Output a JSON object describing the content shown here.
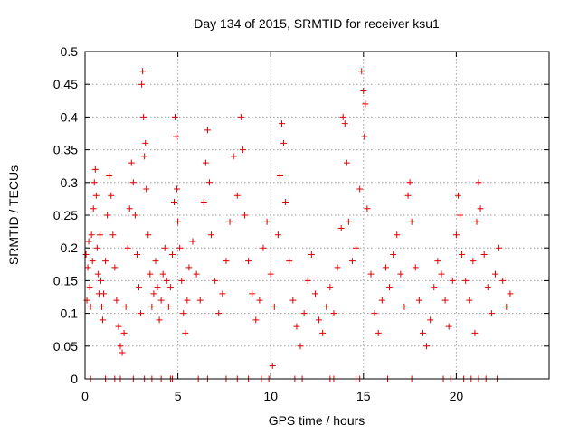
{
  "chart_data": {
    "type": "scatter",
    "title": "Day 134 of 2015, SRMTID for receiver ksu1",
    "xlabel": "GPS time / hours",
    "ylabel": "SRMTID / TECUs",
    "xlim": [
      0,
      25
    ],
    "ylim": [
      0,
      0.5
    ],
    "x_ticks": [
      0,
      5,
      10,
      15,
      20
    ],
    "x_tick_labels": [
      "0",
      "5",
      "10",
      "15",
      "20"
    ],
    "y_ticks": [
      0,
      0.05,
      0.1,
      0.15,
      0.2,
      0.25,
      0.3,
      0.35,
      0.4,
      0.45,
      0.5
    ],
    "y_tick_labels": [
      "0",
      "0.05",
      "0.1",
      "0.15",
      "0.2",
      "0.25",
      "0.3",
      "0.35",
      "0.4",
      "0.45",
      "0.5"
    ],
    "grid": true,
    "marker": "plus",
    "color": "#e00000",
    "series": [
      {
        "name": "SRMTID",
        "points": [
          [
            0.05,
            0.19
          ],
          [
            0.1,
            0.12
          ],
          [
            0.15,
            0.17
          ],
          [
            0.2,
            0.21
          ],
          [
            0.25,
            0.14
          ],
          [
            0.3,
            0.11
          ],
          [
            0.35,
            0.22
          ],
          [
            0.4,
            0.18
          ],
          [
            0.45,
            0.26
          ],
          [
            0.5,
            0.3
          ],
          [
            0.55,
            0.32
          ],
          [
            0.6,
            0.28
          ],
          [
            0.65,
            0.2
          ],
          [
            0.7,
            0.16
          ],
          [
            0.75,
            0.13
          ],
          [
            0.8,
            0.22
          ],
          [
            0.85,
            0.15
          ],
          [
            0.9,
            0.11
          ],
          [
            0.95,
            0.09
          ],
          [
            1.0,
            0.13
          ],
          [
            1.1,
            0.18
          ],
          [
            1.2,
            0.25
          ],
          [
            1.3,
            0.31
          ],
          [
            1.4,
            0.28
          ],
          [
            1.5,
            0.22
          ],
          [
            1.6,
            0.17
          ],
          [
            1.7,
            0.12
          ],
          [
            1.8,
            0.08
          ],
          [
            1.9,
            0.05
          ],
          [
            2.0,
            0.04
          ],
          [
            2.1,
            0.07
          ],
          [
            2.2,
            0.11
          ],
          [
            2.3,
            0.2
          ],
          [
            2.4,
            0.26
          ],
          [
            2.5,
            0.33
          ],
          [
            2.6,
            0.3
          ],
          [
            2.7,
            0.25
          ],
          [
            2.8,
            0.19
          ],
          [
            2.9,
            0.14
          ],
          [
            3.0,
            0.1
          ],
          [
            3.05,
            0.45
          ],
          [
            3.1,
            0.47
          ],
          [
            3.15,
            0.4
          ],
          [
            3.2,
            0.34
          ],
          [
            3.25,
            0.36
          ],
          [
            3.3,
            0.29
          ],
          [
            3.4,
            0.22
          ],
          [
            3.5,
            0.16
          ],
          [
            3.6,
            0.11
          ],
          [
            3.7,
            0.13
          ],
          [
            3.8,
            0.18
          ],
          [
            3.9,
            0.14
          ],
          [
            4.0,
            0.09
          ],
          [
            4.1,
            0.12
          ],
          [
            4.2,
            0.16
          ],
          [
            4.3,
            0.2
          ],
          [
            4.4,
            0.15
          ],
          [
            4.5,
            0.11
          ],
          [
            4.6,
            0.14
          ],
          [
            4.7,
            0.19
          ],
          [
            4.8,
            0.27
          ],
          [
            4.85,
            0.4
          ],
          [
            4.9,
            0.37
          ],
          [
            4.95,
            0.29
          ],
          [
            5.0,
            0.24
          ],
          [
            5.1,
            0.2
          ],
          [
            5.2,
            0.15
          ],
          [
            5.3,
            0.1
          ],
          [
            5.4,
            0.07
          ],
          [
            5.5,
            0.12
          ],
          [
            5.6,
            0.17
          ],
          [
            5.8,
            0.21
          ],
          [
            6.0,
            0.16
          ],
          [
            6.2,
            0.12
          ],
          [
            6.4,
            0.27
          ],
          [
            6.5,
            0.33
          ],
          [
            6.6,
            0.38
          ],
          [
            6.7,
            0.3
          ],
          [
            6.8,
            0.22
          ],
          [
            7.0,
            0.15
          ],
          [
            7.2,
            0.1
          ],
          [
            7.4,
            0.13
          ],
          [
            7.6,
            0.18
          ],
          [
            7.8,
            0.24
          ],
          [
            8.0,
            0.34
          ],
          [
            8.2,
            0.28
          ],
          [
            8.4,
            0.4
          ],
          [
            8.5,
            0.35
          ],
          [
            8.6,
            0.25
          ],
          [
            8.8,
            0.18
          ],
          [
            9.0,
            0.13
          ],
          [
            9.2,
            0.09
          ],
          [
            9.4,
            0.12
          ],
          [
            9.6,
            0.2
          ],
          [
            9.8,
            0.24
          ],
          [
            10.0,
            0.16
          ],
          [
            10.1,
            0.02
          ],
          [
            10.2,
            0.11
          ],
          [
            10.4,
            0.22
          ],
          [
            10.5,
            0.31
          ],
          [
            10.6,
            0.39
          ],
          [
            10.7,
            0.36
          ],
          [
            10.8,
            0.27
          ],
          [
            11.0,
            0.18
          ],
          [
            11.2,
            0.12
          ],
          [
            11.4,
            0.08
          ],
          [
            11.6,
            0.05
          ],
          [
            11.8,
            0.1
          ],
          [
            12.0,
            0.15
          ],
          [
            12.2,
            0.19
          ],
          [
            12.4,
            0.13
          ],
          [
            12.6,
            0.09
          ],
          [
            12.8,
            0.07
          ],
          [
            13.0,
            0.11
          ],
          [
            13.2,
            0.14
          ],
          [
            13.4,
            0.1
          ],
          [
            13.6,
            0.17
          ],
          [
            13.8,
            0.23
          ],
          [
            13.9,
            0.4
          ],
          [
            14.0,
            0.39
          ],
          [
            14.1,
            0.33
          ],
          [
            14.2,
            0.24
          ],
          [
            14.4,
            0.18
          ],
          [
            14.6,
            0.2
          ],
          [
            14.8,
            0.29
          ],
          [
            14.9,
            0.47
          ],
          [
            15.0,
            0.44
          ],
          [
            15.05,
            0.37
          ],
          [
            15.1,
            0.42
          ],
          [
            15.2,
            0.26
          ],
          [
            15.4,
            0.16
          ],
          [
            15.6,
            0.1
          ],
          [
            15.8,
            0.07
          ],
          [
            16.0,
            0.12
          ],
          [
            16.2,
            0.17
          ],
          [
            16.4,
            0.14
          ],
          [
            16.6,
            0.19
          ],
          [
            16.8,
            0.22
          ],
          [
            17.0,
            0.16
          ],
          [
            17.2,
            0.11
          ],
          [
            17.4,
            0.28
          ],
          [
            17.5,
            0.3
          ],
          [
            17.6,
            0.24
          ],
          [
            17.8,
            0.17
          ],
          [
            18.0,
            0.12
          ],
          [
            18.2,
            0.07
          ],
          [
            18.4,
            0.05
          ],
          [
            18.6,
            0.09
          ],
          [
            18.8,
            0.14
          ],
          [
            19.0,
            0.18
          ],
          [
            19.2,
            0.16
          ],
          [
            19.4,
            0.12
          ],
          [
            19.6,
            0.08
          ],
          [
            19.8,
            0.15
          ],
          [
            20.0,
            0.22
          ],
          [
            20.1,
            0.28
          ],
          [
            20.2,
            0.25
          ],
          [
            20.3,
            0.19
          ],
          [
            20.5,
            0.15
          ],
          [
            20.7,
            0.12
          ],
          [
            20.9,
            0.18
          ],
          [
            21.0,
            0.07
          ],
          [
            21.1,
            0.24
          ],
          [
            21.2,
            0.3
          ],
          [
            21.3,
            0.26
          ],
          [
            21.5,
            0.19
          ],
          [
            21.7,
            0.14
          ],
          [
            21.9,
            0.1
          ],
          [
            22.1,
            0.16
          ],
          [
            22.3,
            0.2
          ],
          [
            22.5,
            0.15
          ],
          [
            22.7,
            0.11
          ],
          [
            22.9,
            0.13
          ]
        ]
      }
    ],
    "zero_markers_x": [
      0.3,
      1.1,
      1.6,
      1.9,
      2.6,
      3.2,
      3.6,
      4.1,
      4.6,
      4.7,
      6.1,
      6.6,
      7.6,
      8.2,
      8.8,
      9.5,
      9.9,
      11.3,
      11.7,
      13.2,
      13.4,
      14.6,
      14.8,
      16.3,
      17.6,
      19.3,
      19.7,
      20.4,
      20.8,
      21.2,
      21.6,
      22.2
    ]
  }
}
